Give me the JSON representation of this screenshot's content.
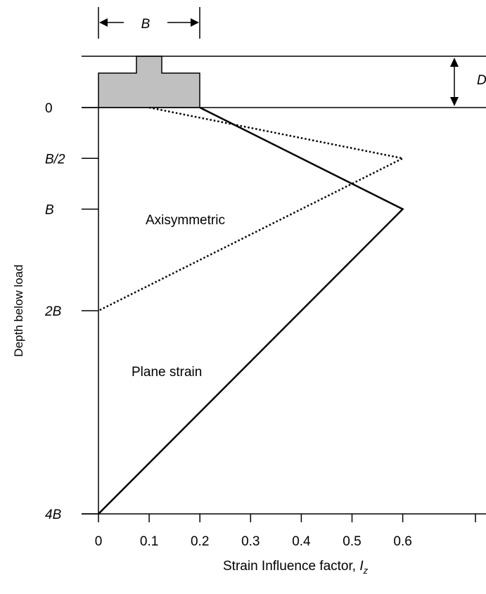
{
  "chart_data": {
    "type": "line",
    "xlabel": "Strain Influence factor, ",
    "xlabel_symbol": "I",
    "xlabel_subscript": "z",
    "ylabel": "Depth below load",
    "xlim": [
      0,
      0.6
    ],
    "x_ticks": [
      "0",
      "0.1",
      "0.2",
      "0.3",
      "0.4",
      "0.5",
      "0.6"
    ],
    "x_tick_values": [
      0,
      0.1,
      0.2,
      0.3,
      0.4,
      0.5,
      0.6
    ],
    "y_ticks": [
      "0",
      "B/2",
      "B",
      "2B",
      "4B"
    ],
    "y_tick_values": [
      0,
      0.5,
      1,
      2,
      4
    ],
    "series": [
      {
        "name": "Plane strain",
        "style": "solid",
        "points": [
          [
            0.2,
            0
          ],
          [
            0.6,
            1
          ],
          [
            0,
            4
          ]
        ]
      },
      {
        "name": "Axisymmetric",
        "style": "dotted",
        "points": [
          [
            0.1,
            0
          ],
          [
            0.6,
            0.5
          ],
          [
            0,
            2
          ]
        ]
      }
    ],
    "annotations": {
      "footing_width": "B",
      "embedment_depth": "D"
    },
    "colors": {
      "line": "#000000",
      "footing_fill": "#c0c0c0"
    }
  }
}
